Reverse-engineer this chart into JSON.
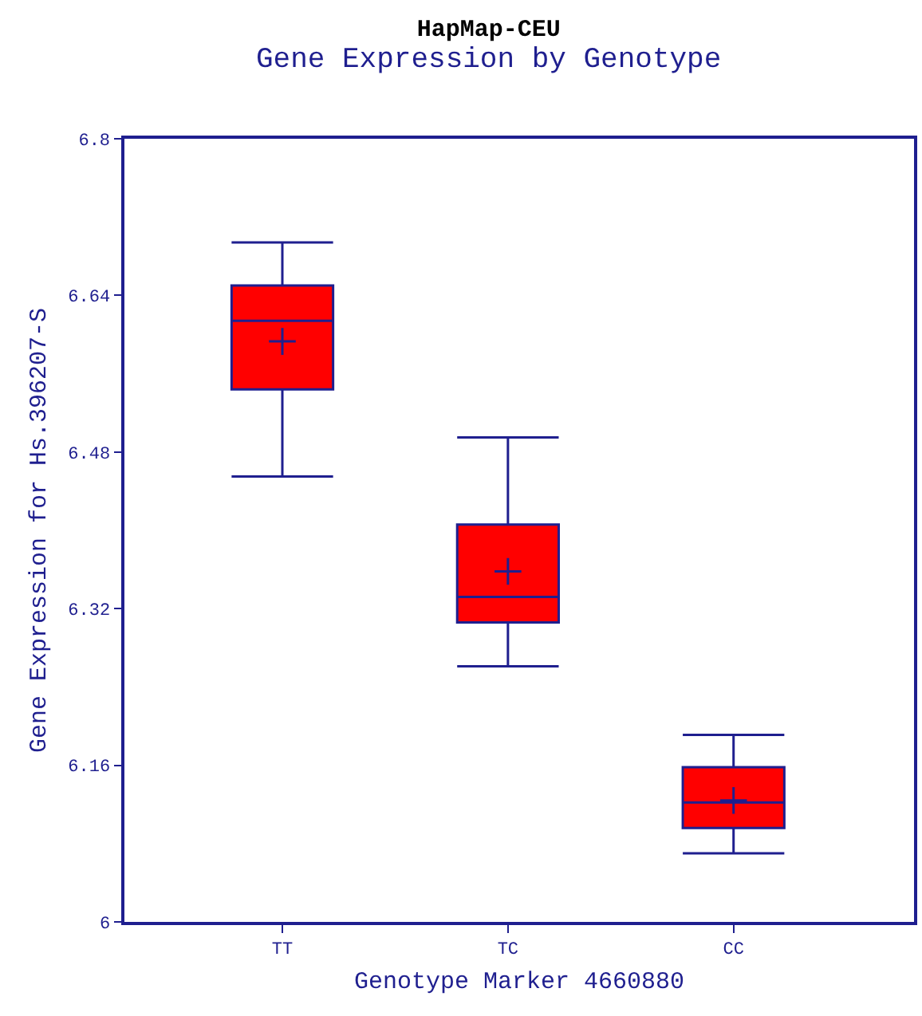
{
  "chart_data": {
    "type": "box",
    "title": "HapMap-CEU",
    "subtitle": "Gene Expression by Genotype",
    "xlabel": "Genotype Marker 4660880",
    "ylabel": "Gene Expression for Hs.396207-S",
    "categories": [
      "TT",
      "TC",
      "CC"
    ],
    "boxes": [
      {
        "low": 6.455,
        "q1": 6.544,
        "median": 6.614,
        "q3": 6.65,
        "high": 6.694,
        "mean": 6.593
      },
      {
        "low": 6.261,
        "q1": 6.306,
        "median": 6.332,
        "q3": 6.406,
        "high": 6.495,
        "mean": 6.358
      },
      {
        "low": 6.07,
        "q1": 6.096,
        "median": 6.122,
        "q3": 6.158,
        "high": 6.191,
        "mean": 6.124
      }
    ],
    "color": "#ff0000",
    "ylim": [
      6,
      6.8
    ],
    "yticks": [
      6,
      6.16,
      6.32,
      6.48,
      6.64,
      6.8
    ],
    "marker": "cross"
  }
}
